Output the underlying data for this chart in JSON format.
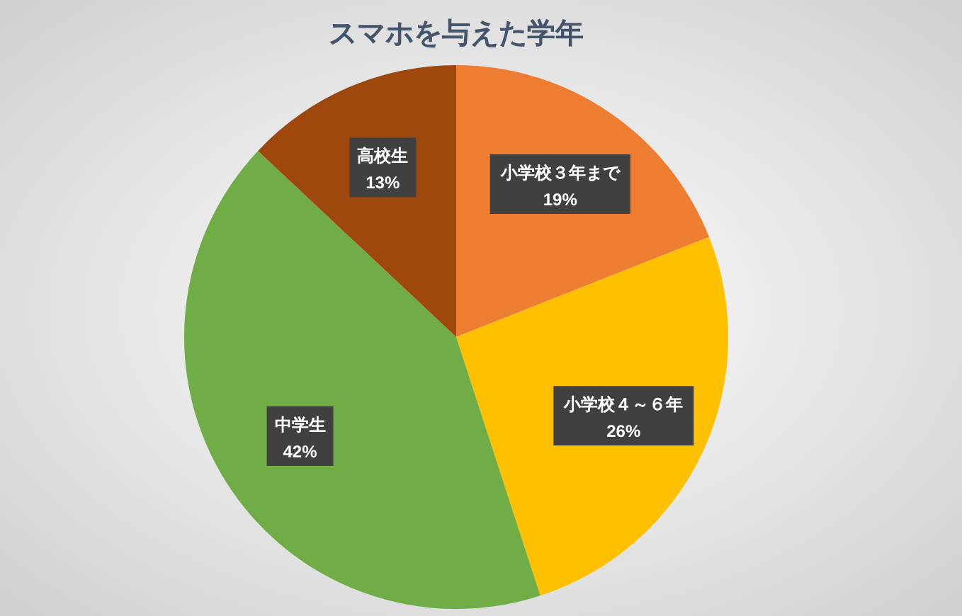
{
  "chart_data": {
    "type": "pie",
    "title": "スマホを与えた学年",
    "categories": [
      "小学校３年まで",
      "小学校４～６年",
      "中学生",
      "高校生"
    ],
    "values": [
      19,
      26,
      42,
      13
    ],
    "value_labels": [
      "19%",
      "26%",
      "42%",
      "13%"
    ],
    "colors": [
      "#ed7d31",
      "#ffc000",
      "#70ad47",
      "#9e480e"
    ]
  }
}
